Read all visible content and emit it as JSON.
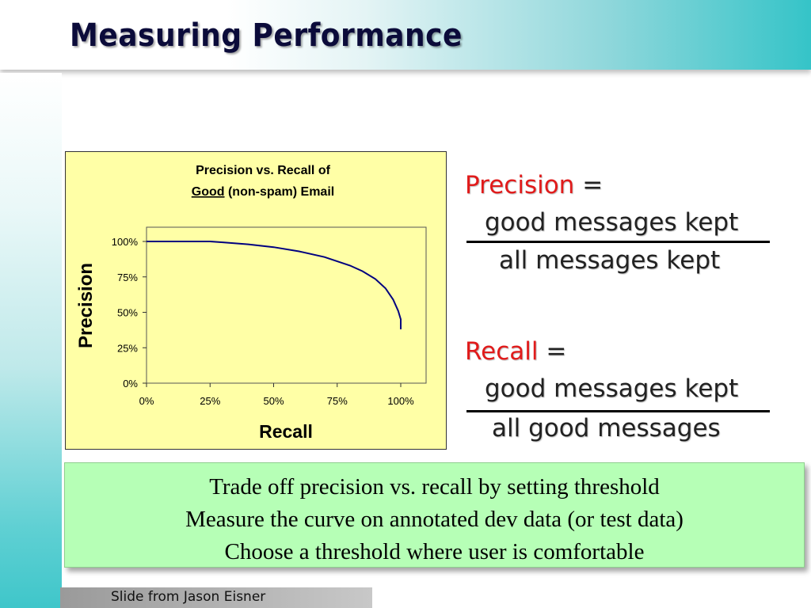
{
  "slide": {
    "title": "Measuring Performance",
    "footer": "Slide from Jason Eisner"
  },
  "formulas": {
    "precision": {
      "term": "Precision",
      "equals": "=",
      "numerator": "good messages kept",
      "denominator": "all messages kept"
    },
    "recall": {
      "term": "Recall",
      "equals": "=",
      "numerator": "good messages kept",
      "denominator": "all good messages"
    },
    "term_color": "#e11b1b"
  },
  "summary": {
    "lines": [
      "Trade off precision vs. recall by setting threshold",
      "Measure the curve on annotated dev data (or test data)",
      "Choose a threshold where user is comfortable"
    ]
  },
  "chart_data": {
    "type": "line",
    "title_line1": "Precision vs. Recall of",
    "title_line2_underlined": "Good",
    "title_line2_rest": " (non-spam) Email",
    "xlabel": "Recall",
    "ylabel": "Precision",
    "xlim": [
      0,
      100
    ],
    "ylim": [
      0,
      100
    ],
    "x_ticks": [
      "0%",
      "25%",
      "50%",
      "75%",
      "100%"
    ],
    "y_ticks": [
      "0%",
      "25%",
      "50%",
      "75%",
      "100%"
    ],
    "grid": false,
    "background": "#ffffa6",
    "series": [
      {
        "color": "#00007f",
        "x": [
          0,
          10,
          20,
          25,
          30,
          40,
          50,
          60,
          70,
          80,
          85,
          90,
          94,
          97,
          99,
          100,
          100
        ],
        "y": [
          100,
          100,
          100,
          100,
          99.4,
          98,
          96,
          93,
          89,
          83,
          79,
          73.5,
          67,
          59,
          51,
          45,
          38
        ]
      }
    ]
  }
}
